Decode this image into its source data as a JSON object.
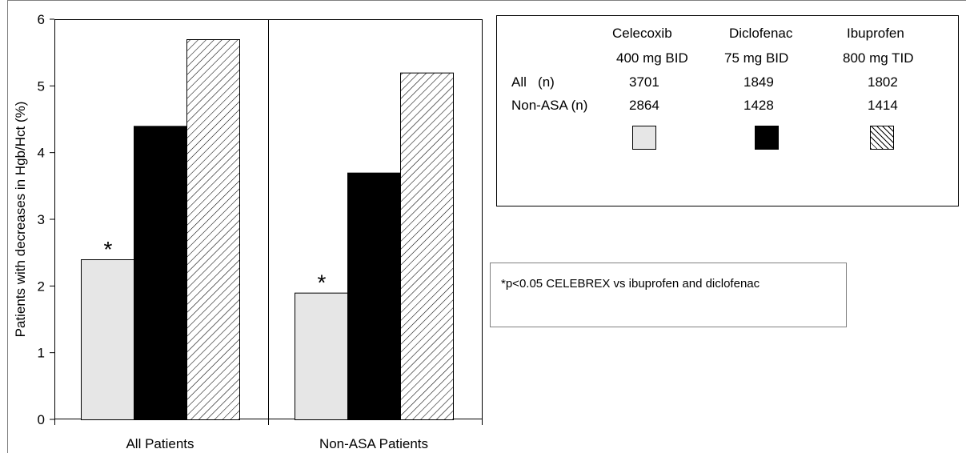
{
  "chart_data": {
    "type": "bar",
    "ylabel": "Patients with decreases in Hgb/Hct (%)",
    "ylim": [
      0,
      6
    ],
    "yticks": [
      "0",
      "1",
      "2",
      "3",
      "4",
      "5",
      "6"
    ],
    "categories": [
      "All Patients",
      "Non-ASA Patients"
    ],
    "series": [
      {
        "name": "Celecoxib 400 mg BID",
        "values": [
          2.4,
          1.9
        ],
        "fill": "#e6e6e6"
      },
      {
        "name": "Diclofenac 75 mg BID",
        "values": [
          4.4,
          3.7
        ],
        "fill": "#000000"
      },
      {
        "name": "Ibuprofen 800 mg TID",
        "values": [
          5.7,
          5.2
        ],
        "fill": "hatch"
      }
    ],
    "annotations": [
      {
        "text": "*",
        "category": "All Patients",
        "series": "Celecoxib 400 mg BID"
      },
      {
        "text": "*",
        "category": "Non-ASA Patients",
        "series": "Celecoxib 400 mg BID"
      }
    ],
    "grid": false
  },
  "legend": {
    "drugs": [
      {
        "name": "Celecoxib",
        "dose": "400 mg BID"
      },
      {
        "name": "Diclofenac",
        "dose": "75 mg BID"
      },
      {
        "name": "Ibuprofen",
        "dose": "800 mg TID"
      }
    ],
    "rows": [
      {
        "label": "All   (n)",
        "counts": [
          "3701",
          "1849",
          "1802"
        ]
      },
      {
        "label": "Non-ASA (n)",
        "counts": [
          "2864",
          "1428",
          "1414"
        ]
      }
    ]
  },
  "note": "*p<0.05 CELEBREX vs ibuprofen and diclofenac",
  "colors": {
    "celecoxib": "#e6e6e6",
    "diclofenac": "#000000",
    "ibuprofen": "hatch"
  }
}
